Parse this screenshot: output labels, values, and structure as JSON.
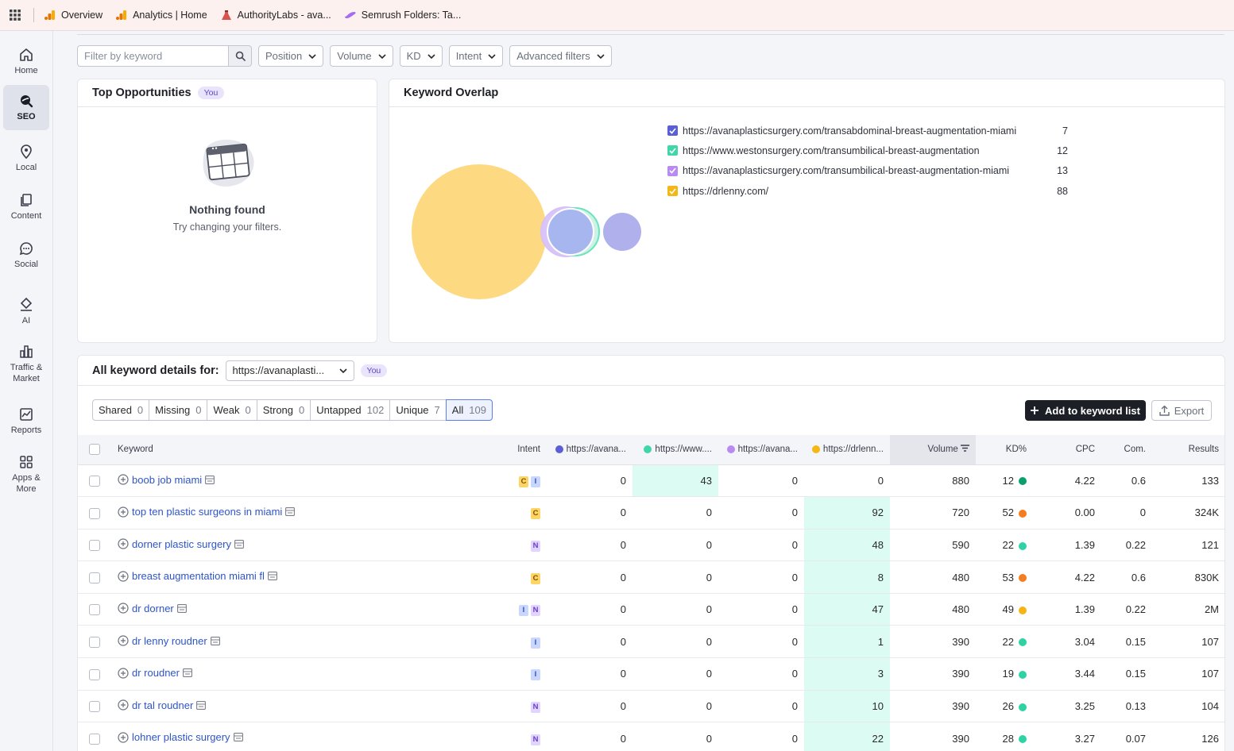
{
  "bookmarks": [
    {
      "label": "Overview",
      "icon": "analytics-icon"
    },
    {
      "label": "Analytics | Home",
      "icon": "analytics-icon"
    },
    {
      "label": "AuthorityLabs - ava...",
      "icon": "authoritylabs-icon"
    },
    {
      "label": "Semrush Folders: Ta...",
      "icon": "semrush-icon"
    }
  ],
  "nav": [
    {
      "label": "Home",
      "icon": "home-icon"
    },
    {
      "label": "SEO",
      "icon": "seo-icon",
      "active": true
    },
    {
      "label": "Local",
      "icon": "pin-icon"
    },
    {
      "label": "Content",
      "icon": "content-icon"
    },
    {
      "label": "Social",
      "icon": "chat-icon"
    },
    {
      "label": "AI",
      "icon": "ai-icon"
    },
    {
      "label": "Traffic & Market",
      "icon": "bar-chart-icon"
    },
    {
      "label": "Reports",
      "icon": "reports-icon"
    },
    {
      "label": "Apps & More",
      "icon": "apps-icon"
    }
  ],
  "filters": {
    "search_placeholder": "Filter by keyword",
    "dropdowns": [
      "Position",
      "Volume",
      "KD",
      "Intent",
      "Advanced filters"
    ]
  },
  "top_opportunities": {
    "title": "Top Opportunities",
    "badge": "You",
    "empty_title": "Nothing found",
    "empty_subtitle": "Try changing your filters."
  },
  "keyword_overlap": {
    "title": "Keyword Overlap",
    "legend": [
      {
        "url": "https://avanaplasticsurgery.com/transabdominal-breast-augmentation-miami",
        "count": "7",
        "color": "#5a5fd6"
      },
      {
        "url": "https://www.westonsurgery.com/transumbilical-breast-augmentation",
        "count": "12",
        "color": "#3fd6a9"
      },
      {
        "url": "https://avanaplasticsurgery.com/transumbilical-breast-augmentation-miami",
        "count": "13",
        "color": "#b98af2"
      },
      {
        "url": "https://drlenny.com/",
        "count": "88",
        "color": "#f5b715"
      }
    ]
  },
  "details": {
    "title": "All keyword details for:",
    "domain": "https://avanaplasti...",
    "badge": "You",
    "segments": [
      {
        "label": "Shared",
        "count": "0"
      },
      {
        "label": "Missing",
        "count": "0"
      },
      {
        "label": "Weak",
        "count": "0"
      },
      {
        "label": "Strong",
        "count": "0"
      },
      {
        "label": "Untapped",
        "count": "102"
      },
      {
        "label": "Unique",
        "count": "7"
      },
      {
        "label": "All",
        "count": "109",
        "active": true
      }
    ],
    "add_button": "Add to keyword list",
    "export_button": "Export"
  },
  "table": {
    "headers": {
      "keyword": "Keyword",
      "intent": "Intent",
      "d1": "https://avana...",
      "d2": "https://www....",
      "d3": "https://avana...",
      "d4": "https://drlenn...",
      "volume": "Volume",
      "kd": "KD%",
      "cpc": "CPC",
      "com": "Com.",
      "results": "Results"
    },
    "rows": [
      {
        "keyword": "boob job miami",
        "intent": [
          "C",
          "I"
        ],
        "d1": "0",
        "d2": "43",
        "d3": "0",
        "d4": "0",
        "volume": "880",
        "kd": "12",
        "kd_color": "#0a9f6e",
        "cpc": "4.22",
        "com": "0.6",
        "results": "133",
        "hl": "d2"
      },
      {
        "keyword": "top ten plastic surgeons in miami",
        "intent": [
          "C"
        ],
        "d1": "0",
        "d2": "0",
        "d3": "0",
        "d4": "92",
        "volume": "720",
        "kd": "52",
        "kd_color": "#f57c1f",
        "cpc": "0.00",
        "com": "0",
        "results": "324K",
        "hl": "d4"
      },
      {
        "keyword": "dorner plastic surgery",
        "intent": [
          "N"
        ],
        "d1": "0",
        "d2": "0",
        "d3": "0",
        "d4": "48",
        "volume": "590",
        "kd": "22",
        "kd_color": "#2fd3a3",
        "cpc": "1.39",
        "com": "0.22",
        "results": "121",
        "hl": "d4"
      },
      {
        "keyword": "breast augmentation miami fl",
        "intent": [
          "C"
        ],
        "d1": "0",
        "d2": "0",
        "d3": "0",
        "d4": "8",
        "volume": "480",
        "kd": "53",
        "kd_color": "#f57c1f",
        "cpc": "4.22",
        "com": "0.6",
        "results": "830K",
        "hl": "d4"
      },
      {
        "keyword": "dr dorner",
        "intent": [
          "I",
          "N"
        ],
        "d1": "0",
        "d2": "0",
        "d3": "0",
        "d4": "47",
        "volume": "480",
        "kd": "49",
        "kd_color": "#f7b416",
        "cpc": "1.39",
        "com": "0.22",
        "results": "2M",
        "hl": "d4"
      },
      {
        "keyword": "dr lenny roudner",
        "intent": [
          "I"
        ],
        "d1": "0",
        "d2": "0",
        "d3": "0",
        "d4": "1",
        "volume": "390",
        "kd": "22",
        "kd_color": "#2fd3a3",
        "cpc": "3.04",
        "com": "0.15",
        "results": "107",
        "hl": "d4"
      },
      {
        "keyword": "dr roudner",
        "intent": [
          "I"
        ],
        "d1": "0",
        "d2": "0",
        "d3": "0",
        "d4": "3",
        "volume": "390",
        "kd": "19",
        "kd_color": "#2fd3a3",
        "cpc": "3.44",
        "com": "0.15",
        "results": "107",
        "hl": "d4"
      },
      {
        "keyword": "dr tal roudner",
        "intent": [
          "N"
        ],
        "d1": "0",
        "d2": "0",
        "d3": "0",
        "d4": "10",
        "volume": "390",
        "kd": "26",
        "kd_color": "#2fd3a3",
        "cpc": "3.25",
        "com": "0.13",
        "results": "104",
        "hl": "d4"
      },
      {
        "keyword": "lohner plastic surgery",
        "intent": [
          "N"
        ],
        "d1": "0",
        "d2": "0",
        "d3": "0",
        "d4": "22",
        "volume": "390",
        "kd": "28",
        "kd_color": "#2fd3a3",
        "cpc": "3.27",
        "com": "0.07",
        "results": "126",
        "hl": "d4"
      }
    ]
  }
}
